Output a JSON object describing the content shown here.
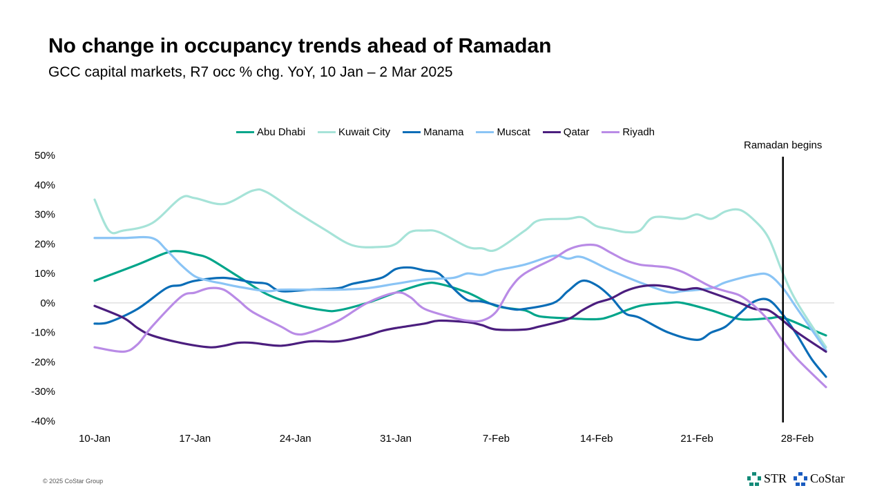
{
  "header": {
    "title": "No change in occupancy trends ahead of Ramadan",
    "subtitle": "GCC capital markets, R7 occ % chg. YoY, 10 Jan – 2 Mar 2025"
  },
  "footer": {
    "copyright": "© 2025 CoStar Group",
    "logos": [
      "STR",
      "CoStar"
    ]
  },
  "chart_data": {
    "type": "line",
    "title": "No change in occupancy trends ahead of Ramadan",
    "xlabel": "",
    "ylabel": "R7 occ % chg. YoY",
    "x_unit": "days since 10-Jan",
    "x_ticks": [
      {
        "day": 0,
        "label": "10-Jan"
      },
      {
        "day": 7,
        "label": "17-Jan"
      },
      {
        "day": 14,
        "label": "24-Jan"
      },
      {
        "day": 21,
        "label": "31-Jan"
      },
      {
        "day": 28,
        "label": "7-Feb"
      },
      {
        "day": 35,
        "label": "14-Feb"
      },
      {
        "day": 42,
        "label": "21-Feb"
      },
      {
        "day": 49,
        "label": "28-Feb"
      }
    ],
    "xlim": [
      0,
      51
    ],
    "ylim": [
      -40,
      50
    ],
    "y_ticks": [
      -40,
      -30,
      -20,
      -10,
      0,
      10,
      20,
      30,
      40,
      50
    ],
    "legend_position": "top",
    "annotation": {
      "day": 48,
      "label": "Ramadan begins"
    },
    "series": [
      {
        "name": "Abu Dhabi",
        "color": "#00A58A",
        "points": [
          [
            0,
            7.5
          ],
          [
            3,
            13
          ],
          [
            5,
            17
          ],
          [
            6,
            17.5
          ],
          [
            7,
            16.5
          ],
          [
            8,
            15
          ],
          [
            10,
            9
          ],
          [
            12,
            3
          ],
          [
            14,
            -0.5
          ],
          [
            16,
            -2.5
          ],
          [
            17,
            -2.5
          ],
          [
            19,
            0
          ],
          [
            21,
            3.5
          ],
          [
            23,
            6.5
          ],
          [
            24,
            6.5
          ],
          [
            26,
            3.5
          ],
          [
            28,
            -1
          ],
          [
            30,
            -2.5
          ],
          [
            31,
            -4.5
          ],
          [
            33,
            -5.2
          ],
          [
            35,
            -5.5
          ],
          [
            36,
            -4.5
          ],
          [
            38,
            -1
          ],
          [
            40,
            0
          ],
          [
            41,
            0
          ],
          [
            43,
            -2.5
          ],
          [
            45,
            -5.5
          ],
          [
            47,
            -5.2
          ],
          [
            48,
            -5
          ],
          [
            50,
            -9
          ],
          [
            51,
            -11
          ]
        ]
      },
      {
        "name": "Kuwait City",
        "color": "#A6E3D8",
        "points": [
          [
            0,
            35
          ],
          [
            1,
            24.5
          ],
          [
            2,
            24.5
          ],
          [
            4,
            27
          ],
          [
            6,
            35.5
          ],
          [
            7,
            35.5
          ],
          [
            9,
            33.5
          ],
          [
            11,
            38
          ],
          [
            12,
            37.5
          ],
          [
            14,
            31
          ],
          [
            16,
            25
          ],
          [
            18,
            19.5
          ],
          [
            20,
            19
          ],
          [
            21,
            20
          ],
          [
            22,
            24
          ],
          [
            23,
            24.5
          ],
          [
            24,
            24
          ],
          [
            26,
            19
          ],
          [
            27,
            18.5
          ],
          [
            28,
            18
          ],
          [
            30,
            24.5
          ],
          [
            31,
            28
          ],
          [
            33,
            28.5
          ],
          [
            34,
            29
          ],
          [
            35,
            26
          ],
          [
            36,
            25
          ],
          [
            37,
            24
          ],
          [
            38,
            24.5
          ],
          [
            39,
            29
          ],
          [
            41,
            28.5
          ],
          [
            42,
            30
          ],
          [
            43,
            28.5
          ],
          [
            44,
            31
          ],
          [
            45,
            31.5
          ],
          [
            46,
            28
          ],
          [
            47,
            22
          ],
          [
            48,
            10
          ],
          [
            49,
            0
          ],
          [
            51,
            -15
          ]
        ]
      },
      {
        "name": "Manama",
        "color": "#0A6DB7",
        "points": [
          [
            0,
            -7
          ],
          [
            1,
            -6.5
          ],
          [
            3,
            -2
          ],
          [
            5,
            5
          ],
          [
            6,
            6
          ],
          [
            7,
            7.5
          ],
          [
            9,
            8.5
          ],
          [
            11,
            7
          ],
          [
            12,
            6.5
          ],
          [
            13,
            4
          ],
          [
            15,
            4.5
          ],
          [
            17,
            5
          ],
          [
            18,
            6.5
          ],
          [
            20,
            8.5
          ],
          [
            21,
            11.5
          ],
          [
            22,
            12
          ],
          [
            23,
            11
          ],
          [
            24,
            10
          ],
          [
            25,
            5
          ],
          [
            26,
            1
          ],
          [
            27,
            0.5
          ],
          [
            29,
            -2
          ],
          [
            30,
            -2
          ],
          [
            32,
            0
          ],
          [
            33,
            4
          ],
          [
            34,
            7.5
          ],
          [
            35,
            6
          ],
          [
            36,
            2
          ],
          [
            37,
            -3.5
          ],
          [
            38,
            -5
          ],
          [
            40,
            -10
          ],
          [
            42,
            -12.5
          ],
          [
            43,
            -10
          ],
          [
            44,
            -8
          ],
          [
            45,
            -3.5
          ],
          [
            46,
            0.5
          ],
          [
            47,
            1
          ],
          [
            48,
            -4
          ],
          [
            49,
            -11
          ],
          [
            50,
            -19
          ],
          [
            51,
            -25
          ]
        ]
      },
      {
        "name": "Muscat",
        "color": "#8AC4F5",
        "points": [
          [
            0,
            22
          ],
          [
            2,
            22
          ],
          [
            4,
            22
          ],
          [
            5,
            18
          ],
          [
            6,
            13
          ],
          [
            7,
            9
          ],
          [
            8,
            7.5
          ],
          [
            9,
            6.5
          ],
          [
            10,
            5.5
          ],
          [
            12,
            4
          ],
          [
            13,
            4.5
          ],
          [
            15,
            4.5
          ],
          [
            17,
            4.5
          ],
          [
            19,
            5
          ],
          [
            21,
            6.5
          ],
          [
            23,
            8
          ],
          [
            25,
            8.5
          ],
          [
            26,
            10
          ],
          [
            27,
            9.5
          ],
          [
            28,
            11
          ],
          [
            30,
            13
          ],
          [
            32,
            16
          ],
          [
            33,
            15
          ],
          [
            34,
            15.5
          ],
          [
            36,
            11
          ],
          [
            38,
            7
          ],
          [
            40,
            3.7
          ],
          [
            41,
            4
          ],
          [
            43,
            5
          ],
          [
            44,
            7
          ],
          [
            46,
            9.5
          ],
          [
            47,
            9.5
          ],
          [
            48,
            5
          ],
          [
            49,
            -2
          ],
          [
            51,
            -16
          ]
        ]
      },
      {
        "name": "Qatar",
        "color": "#4B1E7E",
        "points": [
          [
            0,
            -1
          ],
          [
            2,
            -5
          ],
          [
            3,
            -8.5
          ],
          [
            4,
            -11
          ],
          [
            6,
            -13.5
          ],
          [
            8,
            -15
          ],
          [
            9,
            -14.5
          ],
          [
            10,
            -13.5
          ],
          [
            11,
            -13.5
          ],
          [
            13,
            -14.5
          ],
          [
            15,
            -13
          ],
          [
            17,
            -13
          ],
          [
            19,
            -11
          ],
          [
            20,
            -9.5
          ],
          [
            21,
            -8.5
          ],
          [
            23,
            -7
          ],
          [
            24,
            -6
          ],
          [
            26,
            -6.5
          ],
          [
            27,
            -7.5
          ],
          [
            28,
            -9
          ],
          [
            30,
            -9
          ],
          [
            31,
            -8
          ],
          [
            33,
            -5.5
          ],
          [
            34,
            -2.5
          ],
          [
            35,
            0
          ],
          [
            36,
            1.5
          ],
          [
            37,
            4
          ],
          [
            38,
            5.5
          ],
          [
            39,
            6
          ],
          [
            40,
            5.5
          ],
          [
            41,
            4.5
          ],
          [
            42,
            5
          ],
          [
            43,
            3.5
          ],
          [
            45,
            0
          ],
          [
            46,
            -2
          ],
          [
            47,
            -2.5
          ],
          [
            48,
            -6
          ],
          [
            49,
            -10
          ],
          [
            51,
            -16.5
          ]
        ]
      },
      {
        "name": "Riyadh",
        "color": "#B98BE6",
        "points": [
          [
            0,
            -15
          ],
          [
            2,
            -16.5
          ],
          [
            3,
            -14
          ],
          [
            4,
            -8
          ],
          [
            6,
            2
          ],
          [
            7,
            3.5
          ],
          [
            8,
            5
          ],
          [
            9,
            4.5
          ],
          [
            10,
            1
          ],
          [
            11,
            -3
          ],
          [
            13,
            -8
          ],
          [
            14,
            -10.5
          ],
          [
            15,
            -10
          ],
          [
            17,
            -6
          ],
          [
            19,
            0
          ],
          [
            21,
            3.5
          ],
          [
            22,
            2
          ],
          [
            23,
            -2
          ],
          [
            25,
            -5
          ],
          [
            26,
            -6
          ],
          [
            27,
            -6
          ],
          [
            28,
            -3
          ],
          [
            29,
            5
          ],
          [
            30,
            10
          ],
          [
            32,
            15
          ],
          [
            33,
            18
          ],
          [
            34,
            19.5
          ],
          [
            35,
            19.5
          ],
          [
            36,
            17
          ],
          [
            37,
            14.5
          ],
          [
            38,
            13
          ],
          [
            39,
            12.5
          ],
          [
            40,
            12
          ],
          [
            41,
            10.5
          ],
          [
            42,
            8
          ],
          [
            43,
            5.5
          ],
          [
            44,
            4
          ],
          [
            45,
            2.5
          ],
          [
            46,
            -1
          ],
          [
            47,
            -6
          ],
          [
            48,
            -13
          ],
          [
            49,
            -19
          ],
          [
            51,
            -28.5
          ]
        ]
      }
    ]
  }
}
